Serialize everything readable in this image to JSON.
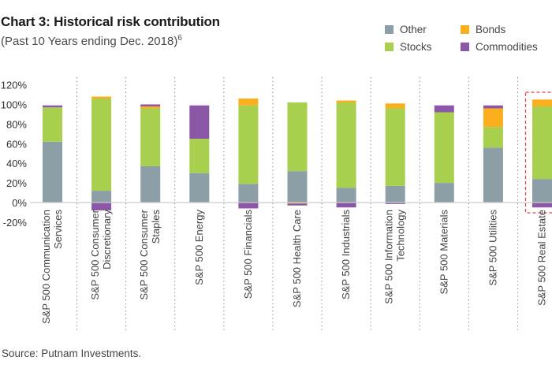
{
  "header": {
    "title": "Chart 3: Historical risk contribution",
    "subtitle": "(Past 10 Years ending Dec. 2018)",
    "subtitle_footnote": "6"
  },
  "footer": {
    "source": "Source: Putnam Investments."
  },
  "colors": {
    "Other": "#8c9fa7",
    "Stocks": "#a8cf4d",
    "Bonds": "#fcaf1d",
    "Commodities": "#8b57a6",
    "highlight_box": "#e3434a",
    "separator": "#777777",
    "axis": "#cccccc"
  },
  "chart_data": {
    "type": "bar",
    "stacked": true,
    "title": "Chart 3: Historical risk contribution",
    "subtitle": "(Past 10 Years ending Dec. 2018)",
    "xlabel": "",
    "ylabel": "",
    "ylim": [
      -20,
      120
    ],
    "yticks": [
      -20,
      0,
      20,
      40,
      60,
      80,
      100,
      120
    ],
    "ytick_labels": [
      "-20%",
      "0%",
      "20%",
      "40%",
      "60%",
      "80%",
      "100%",
      "120%"
    ],
    "grid": false,
    "legend_position": "top-right",
    "legend": [
      "Other",
      "Bonds",
      "Stocks",
      "Commodities"
    ],
    "highlighted_category": "S&P 500 Real Estate",
    "categories": [
      [
        "S&P 500 Communication",
        "Services"
      ],
      [
        "S&P 500 Consumer",
        "Discretionary"
      ],
      [
        "S&P 500 Consumer",
        "Staples"
      ],
      [
        "S&P 500 Energy"
      ],
      [
        "S&P 500 Financials"
      ],
      [
        "S&P 500 Health Care"
      ],
      [
        "S&P 500 Industrials"
      ],
      [
        "S&P 500 Information",
        "Technology"
      ],
      [
        "S&P 500 Materials"
      ],
      [
        "S&P 500 Utilities"
      ],
      [
        "S&P 500 Real Estate"
      ]
    ],
    "series": [
      {
        "name": "Other",
        "values": [
          62,
          12,
          37,
          30,
          19,
          32,
          15,
          17,
          20,
          56,
          24
        ]
      },
      {
        "name": "Stocks",
        "values": [
          35,
          94,
          59,
          35,
          80,
          70,
          87,
          79,
          72,
          21,
          74
        ]
      },
      {
        "name": "Bonds",
        "values": [
          0,
          2,
          2,
          0,
          7,
          -1,
          2,
          5,
          0,
          19,
          7
        ]
      },
      {
        "name": "Commodities",
        "values": [
          2,
          -8,
          2,
          34,
          -6,
          -2,
          -5,
          -1.5,
          7,
          3,
          -5
        ]
      }
    ]
  }
}
